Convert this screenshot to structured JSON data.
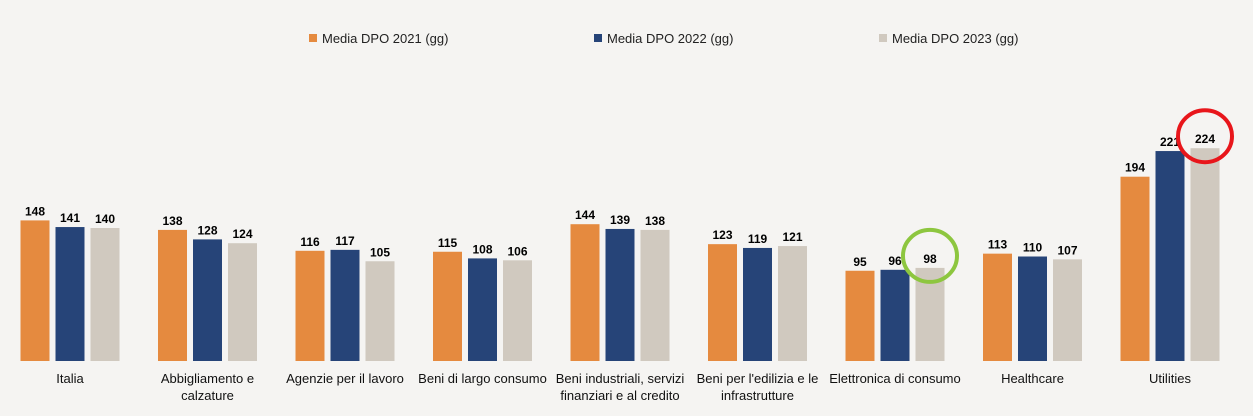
{
  "chart_data": {
    "type": "bar",
    "title": "",
    "xlabel": "",
    "ylabel": "",
    "ylim": [
      0,
      240
    ],
    "grid": false,
    "legend_position": "top",
    "categories": [
      [
        "Italia"
      ],
      [
        "Abbigliamento e",
        "calzature"
      ],
      [
        "Agenzie per il lavoro"
      ],
      [
        "Beni di largo consumo"
      ],
      [
        "Beni industriali, servizi",
        "finanziari e al credito"
      ],
      [
        "Beni per l'edilizia e le",
        "infrastrutture"
      ],
      [
        "Elettronica di consumo"
      ],
      [
        "Healthcare"
      ],
      [
        "Utilities"
      ]
    ],
    "series": [
      {
        "name": "Media DPO 2021 (gg)",
        "color": "#e58a3f",
        "values": [
          148,
          138,
          116,
          115,
          144,
          123,
          95,
          113,
          194
        ]
      },
      {
        "name": "Media DPO 2022 (gg)",
        "color": "#264478",
        "values": [
          141,
          128,
          117,
          108,
          139,
          119,
          96,
          110,
          221
        ]
      },
      {
        "name": "Media DPO 2023 (gg)",
        "color": "#d0c9bf",
        "values": [
          140,
          124,
          105,
          106,
          138,
          121,
          98,
          107,
          224
        ]
      }
    ],
    "annotations": [
      {
        "type": "circle",
        "category_index": 6,
        "series_index": 2,
        "color": "#8dc63f"
      },
      {
        "type": "circle",
        "category_index": 8,
        "series_index": 2,
        "color": "#e8161b"
      }
    ]
  }
}
